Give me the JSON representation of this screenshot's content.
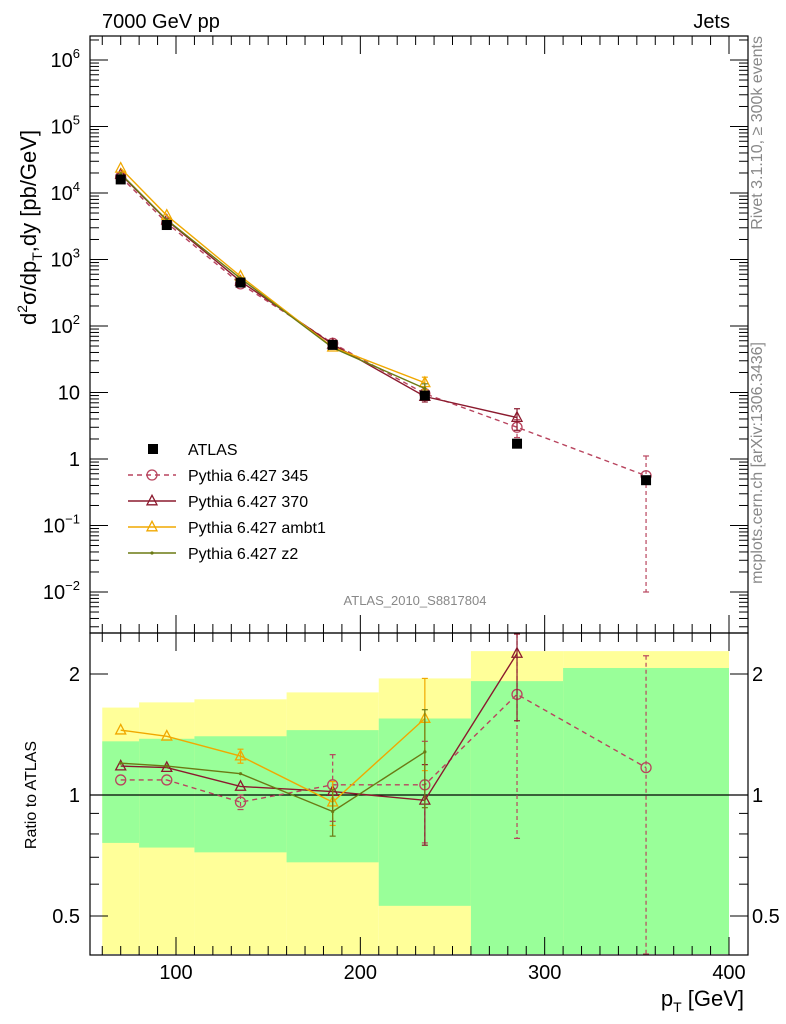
{
  "header": {
    "left": "7000 GeV pp",
    "right": "Jets"
  },
  "side_text": {
    "rivet": "Rivet 3.1.10, ≥ 300k events",
    "mcplots": "mcplots.cern.ch [arXiv:1306.3436]"
  },
  "analysis_label": "ATLAS_2010_S8817804",
  "chart_data": [
    {
      "type": "line",
      "yscale": "log",
      "title": "7000 GeV pp Jets",
      "ylabel": "d²σ/dp_T,dy [pb/GeV]",
      "ylabel_parts": {
        "d": "d",
        "sup2": "2",
        "sigma_dp": "σ/dp",
        "sub_t": "T",
        "rest": ",dy [pb/GeV]"
      },
      "xlim": [
        55,
        400
      ],
      "ylim": [
        0.003,
        2000000
      ],
      "yticklabels": [
        {
          "value": 1000000,
          "base": "10",
          "exp": "6"
        },
        {
          "value": 100000,
          "base": "10",
          "exp": "5"
        },
        {
          "value": 10000,
          "base": "10",
          "exp": "4"
        },
        {
          "value": 1000,
          "base": "10",
          "exp": "3"
        },
        {
          "value": 100,
          "base": "10",
          "exp": "2"
        },
        {
          "value": 10,
          "base": "10",
          "exp": ""
        },
        {
          "value": 1,
          "base": "1",
          "exp": ""
        },
        {
          "value": 0.1,
          "base": "10",
          "exp": "−1"
        },
        {
          "value": 0.01,
          "base": "10",
          "exp": "−2"
        }
      ],
      "legend": {
        "position": "lower-left",
        "entries": [
          "ATLAS",
          "Pythia 6.427 345",
          "Pythia 6.427 370",
          "Pythia 6.427 ambt1",
          "Pythia 6.427 z2"
        ]
      },
      "reference": {
        "name": "ATLAS",
        "color": "#000000",
        "x": [
          70,
          95,
          135,
          185,
          235,
          285,
          355
        ],
        "y": [
          16000,
          3300,
          450,
          52,
          9,
          1.7,
          0.48
        ],
        "xerr": [
          10,
          15,
          25,
          25,
          25,
          25,
          45
        ]
      },
      "series": [
        {
          "name": "Pythia 6.427 345",
          "color": "#b8445e",
          "marker": "circle",
          "dashed": true,
          "x": [
            70,
            95,
            135,
            185,
            235,
            285,
            355
          ],
          "y": [
            17500,
            3550,
            430,
            55,
            9.6,
            3.0,
            0.56
          ],
          "err": [
            0,
            0,
            0,
            0,
            0,
            0.9,
            0.55
          ]
        },
        {
          "name": "Pythia 6.427 370",
          "color": "#8b1a2e",
          "marker": "triangle",
          "dashed": false,
          "x": [
            70,
            95,
            135,
            185,
            235,
            285
          ],
          "y": [
            19000,
            3900,
            470,
            53,
            8.7,
            4.2
          ],
          "err": [
            0,
            0,
            0,
            0,
            1.5,
            1.5
          ]
        },
        {
          "name": "Pythia 6.427 ambt1",
          "color": "#f0a800",
          "marker": "triangle",
          "dashed": false,
          "x": [
            70,
            95,
            135,
            185,
            235
          ],
          "y": [
            23500,
            4600,
            560,
            48,
            14
          ],
          "err": [
            0,
            0,
            0,
            0,
            3
          ]
        },
        {
          "name": "Pythia 6.427 z2",
          "color": "#6b7a14",
          "marker": "dot",
          "dashed": false,
          "x": [
            70,
            95,
            135,
            185,
            235
          ],
          "y": [
            19500,
            3950,
            520,
            47,
            11.5
          ],
          "err": [
            0,
            0,
            0,
            0,
            2
          ]
        }
      ]
    },
    {
      "type": "line",
      "yscale": "log",
      "ylabel": "Ratio to ATLAS",
      "xlabel": "p_T [GeV]",
      "xlabel_parts": {
        "p": "p",
        "sub_t": "T",
        "rest": " [GeV]"
      },
      "xlim": [
        55,
        400
      ],
      "ylim": [
        0.42,
        2.28
      ],
      "xticks": [
        100,
        200,
        300,
        400
      ],
      "xticklabels": [
        "100",
        "200",
        "300",
        "400"
      ],
      "yticks": [
        0.5,
        1,
        2
      ],
      "yticklabels": [
        "0.5",
        "1",
        "2"
      ],
      "uncertainty_bands": {
        "bins": [
          [
            60,
            80
          ],
          [
            80,
            110
          ],
          [
            110,
            160
          ],
          [
            160,
            210
          ],
          [
            210,
            260
          ],
          [
            260,
            310
          ],
          [
            310,
            400
          ]
        ],
        "inner": [
          [
            0.76,
            1.36
          ],
          [
            0.74,
            1.38
          ],
          [
            0.72,
            1.4
          ],
          [
            0.68,
            1.45
          ],
          [
            0.53,
            1.55
          ],
          [
            0.4,
            1.92
          ],
          [
            0.4,
            2.07
          ]
        ],
        "outer": [
          [
            0.38,
            1.65
          ],
          [
            0.38,
            1.7
          ],
          [
            0.38,
            1.73
          ],
          [
            0.38,
            1.8
          ],
          [
            0.38,
            1.95
          ],
          [
            0.38,
            2.28
          ],
          [
            0.38,
            2.28
          ]
        ],
        "inner_color": "#99ff99",
        "outer_color": "#ffff99"
      },
      "series": [
        {
          "name": "Pythia 6.427 345",
          "color": "#b8445e",
          "marker": "circle",
          "dashed": true,
          "x": [
            70,
            95,
            135,
            185,
            235,
            285,
            355
          ],
          "y": [
            1.09,
            1.09,
            0.96,
            1.06,
            1.06,
            1.78,
            1.17
          ],
          "err": [
            0,
            0,
            0.04,
            0.2,
            0.3,
            1.0,
            1.05
          ]
        },
        {
          "name": "Pythia 6.427 370",
          "color": "#8b1a2e",
          "marker": "triangle",
          "dashed": false,
          "x": [
            70,
            95,
            135,
            185,
            235,
            285
          ],
          "y": [
            1.18,
            1.17,
            1.05,
            1.02,
            0.97,
            2.25
          ],
          "err": [
            0,
            0,
            0,
            0,
            0.22,
            0.72
          ]
        },
        {
          "name": "Pythia 6.427 ambt1",
          "color": "#f0a800",
          "marker": "triangle",
          "dashed": false,
          "x": [
            70,
            95,
            135,
            185,
            235
          ],
          "y": [
            1.45,
            1.4,
            1.25,
            0.96,
            1.55
          ],
          "err": [
            0,
            0,
            0.05,
            0.12,
            0.4
          ]
        },
        {
          "name": "Pythia 6.427 z2",
          "color": "#6b7a14",
          "marker": "dot",
          "dashed": false,
          "x": [
            70,
            95,
            135,
            185,
            235
          ],
          "y": [
            1.2,
            1.18,
            1.13,
            0.91,
            1.28
          ],
          "err": [
            0,
            0,
            0,
            0.12,
            0.35
          ]
        }
      ]
    }
  ]
}
